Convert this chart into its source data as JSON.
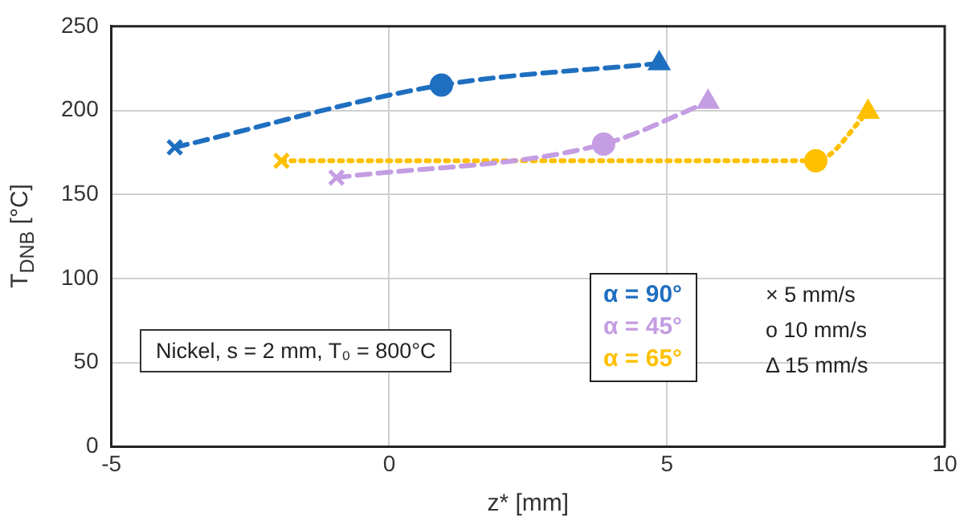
{
  "chart_data": {
    "type": "line",
    "xlabel": "z* [mm]",
    "ylabel": "T$_{DNB}$ [°C]",
    "xlim": [
      -5,
      10
    ],
    "xticks": [
      -5,
      0,
      5,
      10
    ],
    "ylim": [
      0,
      250
    ],
    "yticks": [
      0,
      50,
      100,
      150,
      200,
      250
    ],
    "grid": true,
    "legend": "bottom right",
    "series": [
      {
        "name": "α =  90°",
        "color": "#1f6fc0",
        "line_style": "dashed",
        "marker": [
          "cross",
          "circle",
          "triangle"
        ],
        "x": [
          -3.86,
          0.94,
          4.86
        ],
        "values": [
          178,
          215,
          228
        ]
      },
      {
        "name": "α =  45°",
        "color": "#c49de2",
        "line_style": "dashed",
        "marker": [
          "cross",
          "circle",
          "triangle"
        ],
        "x": [
          -0.95,
          3.86,
          5.74
        ],
        "values": [
          160,
          180,
          205
        ]
      },
      {
        "name": "α = 65°",
        "color": "#ffc000",
        "line_style": "dotted",
        "marker": [
          "cross",
          "circle",
          "triangle"
        ],
        "x": [
          -1.94,
          7.68,
          8.62
        ],
        "values": [
          170,
          170,
          199
        ]
      }
    ],
    "annotations": [
      "Nickel, s = 2 mm, T₀ = 800°C",
      "×  5 mm/s",
      "o 10 mm/s",
      "Δ 15 mm/s"
    ]
  }
}
